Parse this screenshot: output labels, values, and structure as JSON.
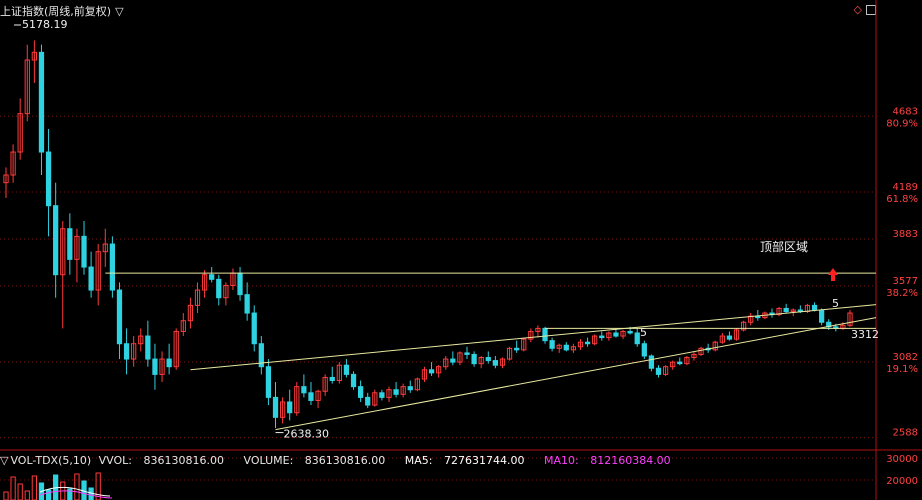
{
  "header": {
    "title": "上证指数(周线,前复权)",
    "menu_icon": "triangle-down-icon"
  },
  "window_controls": {
    "diamond_icon": "diamond-icon",
    "restore_icon": "window-box-icon"
  },
  "colors": {
    "up": "#ff3b3b",
    "down": "#2fd2e0",
    "line": "#e8e8a0",
    "grid": "#7a1010",
    "axis_text": "#ff4040",
    "annot": "#f0f0f0",
    "ma5": "#ffffff",
    "ma10": "#ff40ff"
  },
  "chart_data": {
    "type": "candlestick",
    "price_axis": {
      "ticks": [
        {
          "value": 4683,
          "pct": "80.9%"
        },
        {
          "value": 4189,
          "pct": "61.8%"
        },
        {
          "value": 3883,
          "pct": ""
        },
        {
          "value": 3577,
          "pct": "38.2%"
        },
        {
          "value": 3082,
          "pct": "19.1%"
        },
        {
          "value": 2588,
          "pct": ""
        }
      ],
      "range": [
        2520,
        5350
      ]
    },
    "annotations": {
      "high_label": "5178.19",
      "low_label": "2638.30",
      "last_label": "3312",
      "zone_label": "顶部区域",
      "wave5_label_a": "5",
      "wave5_label_b": "5"
    },
    "volume_axis": {
      "ticks": [
        {
          "value": "30000"
        },
        {
          "value": "20000"
        }
      ]
    },
    "candles": [
      [
        4250,
        4350,
        4150,
        4300
      ],
      [
        4300,
        4500,
        4250,
        4450
      ],
      [
        4450,
        4800,
        4400,
        4700
      ],
      [
        4700,
        5150,
        4650,
        5050
      ],
      [
        5050,
        5178,
        4900,
        5100
      ],
      [
        5100,
        5150,
        4300,
        4450
      ],
      [
        4450,
        4600,
        3900,
        4100
      ],
      [
        4100,
        4250,
        3500,
        3650
      ],
      [
        3650,
        4000,
        3300,
        3950
      ],
      [
        3950,
        4050,
        3650,
        3750
      ],
      [
        3750,
        3950,
        3600,
        3900
      ],
      [
        3900,
        4000,
        3650,
        3700
      ],
      [
        3700,
        3800,
        3500,
        3550
      ],
      [
        3550,
        3850,
        3450,
        3800
      ],
      [
        3800,
        3950,
        3700,
        3850
      ],
      [
        3850,
        3900,
        3500,
        3550
      ],
      [
        3550,
        3600,
        3100,
        3200
      ],
      [
        3200,
        3300,
        3000,
        3100
      ],
      [
        3100,
        3250,
        3050,
        3200
      ],
      [
        3200,
        3300,
        3150,
        3250
      ],
      [
        3250,
        3350,
        3050,
        3100
      ],
      [
        3100,
        3200,
        2900,
        3000
      ],
      [
        3000,
        3150,
        2950,
        3100
      ],
      [
        3100,
        3200,
        3000,
        3050
      ],
      [
        3050,
        3300,
        3030,
        3280
      ],
      [
        3280,
        3400,
        3250,
        3350
      ],
      [
        3350,
        3500,
        3300,
        3450
      ],
      [
        3450,
        3600,
        3400,
        3550
      ],
      [
        3550,
        3680,
        3500,
        3650
      ],
      [
        3650,
        3700,
        3600,
        3620
      ],
      [
        3620,
        3650,
        3450,
        3500
      ],
      [
        3500,
        3600,
        3450,
        3580
      ],
      [
        3580,
        3690,
        3550,
        3660
      ],
      [
        3660,
        3700,
        3480,
        3520
      ],
      [
        3520,
        3600,
        3350,
        3400
      ],
      [
        3400,
        3450,
        3150,
        3200
      ],
      [
        3200,
        3250,
        3000,
        3050
      ],
      [
        3050,
        3100,
        2800,
        2850
      ],
      [
        2850,
        2950,
        2650,
        2720
      ],
      [
        2720,
        2850,
        2680,
        2820
      ],
      [
        2820,
        2900,
        2700,
        2750
      ],
      [
        2750,
        2950,
        2730,
        2920
      ],
      [
        2920,
        3000,
        2850,
        2880
      ],
      [
        2880,
        2950,
        2800,
        2830
      ],
      [
        2830,
        2900,
        2780,
        2890
      ],
      [
        2890,
        3000,
        2860,
        2980
      ],
      [
        2980,
        3050,
        2940,
        2960
      ],
      [
        2960,
        3080,
        2940,
        3060
      ],
      [
        3060,
        3100,
        2980,
        3000
      ],
      [
        3000,
        3020,
        2900,
        2920
      ],
      [
        2920,
        2960,
        2820,
        2850
      ],
      [
        2850,
        2880,
        2780,
        2800
      ],
      [
        2800,
        2900,
        2790,
        2880
      ],
      [
        2880,
        2900,
        2830,
        2850
      ],
      [
        2850,
        2920,
        2820,
        2900
      ],
      [
        2900,
        2950,
        2850,
        2870
      ],
      [
        2870,
        2940,
        2850,
        2920
      ],
      [
        2920,
        2960,
        2880,
        2900
      ],
      [
        2900,
        2980,
        2890,
        2970
      ],
      [
        2970,
        3050,
        2950,
        3030
      ],
      [
        3030,
        3080,
        2990,
        3010
      ],
      [
        3010,
        3060,
        2980,
        3050
      ],
      [
        3050,
        3120,
        3030,
        3100
      ],
      [
        3100,
        3150,
        3060,
        3080
      ],
      [
        3080,
        3150,
        3060,
        3140
      ],
      [
        3140,
        3180,
        3100,
        3130
      ],
      [
        3130,
        3150,
        3050,
        3070
      ],
      [
        3070,
        3120,
        3040,
        3110
      ],
      [
        3110,
        3150,
        3070,
        3090
      ],
      [
        3090,
        3120,
        3040,
        3060
      ],
      [
        3060,
        3110,
        3040,
        3100
      ],
      [
        3100,
        3180,
        3090,
        3170
      ],
      [
        3170,
        3220,
        3140,
        3160
      ],
      [
        3160,
        3240,
        3150,
        3230
      ],
      [
        3230,
        3300,
        3210,
        3280
      ],
      [
        3280,
        3320,
        3240,
        3300
      ],
      [
        3300,
        3310,
        3200,
        3220
      ],
      [
        3220,
        3240,
        3150,
        3170
      ],
      [
        3170,
        3200,
        3140,
        3190
      ],
      [
        3190,
        3210,
        3150,
        3160
      ],
      [
        3160,
        3200,
        3140,
        3180
      ],
      [
        3180,
        3230,
        3160,
        3210
      ],
      [
        3210,
        3240,
        3180,
        3200
      ],
      [
        3200,
        3260,
        3190,
        3250
      ],
      [
        3250,
        3280,
        3220,
        3240
      ],
      [
        3240,
        3280,
        3220,
        3270
      ],
      [
        3270,
        3300,
        3240,
        3250
      ],
      [
        3250,
        3290,
        3230,
        3280
      ],
      [
        3280,
        3310,
        3260,
        3270
      ],
      [
        3270,
        3300,
        3180,
        3200
      ],
      [
        3200,
        3220,
        3100,
        3120
      ],
      [
        3120,
        3130,
        3020,
        3040
      ],
      [
        3040,
        3060,
        2980,
        3000
      ],
      [
        3000,
        3060,
        2990,
        3050
      ],
      [
        3050,
        3090,
        3030,
        3080
      ],
      [
        3080,
        3110,
        3060,
        3070
      ],
      [
        3070,
        3120,
        3060,
        3110
      ],
      [
        3110,
        3150,
        3090,
        3130
      ],
      [
        3130,
        3180,
        3120,
        3170
      ],
      [
        3170,
        3200,
        3140,
        3160
      ],
      [
        3160,
        3220,
        3150,
        3210
      ],
      [
        3210,
        3270,
        3200,
        3250
      ],
      [
        3250,
        3280,
        3220,
        3230
      ],
      [
        3230,
        3300,
        3220,
        3290
      ],
      [
        3290,
        3350,
        3280,
        3340
      ],
      [
        3340,
        3400,
        3320,
        3380
      ],
      [
        3380,
        3420,
        3350,
        3370
      ],
      [
        3370,
        3410,
        3360,
        3400
      ],
      [
        3400,
        3430,
        3370,
        3390
      ],
      [
        3390,
        3440,
        3380,
        3430
      ],
      [
        3430,
        3460,
        3400,
        3410
      ],
      [
        3410,
        3430,
        3380,
        3420
      ],
      [
        3420,
        3450,
        3400,
        3410
      ],
      [
        3410,
        3460,
        3400,
        3450
      ],
      [
        3450,
        3470,
        3410,
        3420
      ],
      [
        3420,
        3430,
        3320,
        3340
      ],
      [
        3340,
        3360,
        3290,
        3310
      ],
      [
        3310,
        3330,
        3280,
        3300
      ],
      [
        3300,
        3340,
        3290,
        3320
      ],
      [
        3320,
        3420,
        3310,
        3400
      ]
    ],
    "volume": {
      "series_name": "VOL-TDX(5,10)",
      "vvol": "836130816.00",
      "volume": "836130816.00",
      "ma5": "727631744.00",
      "ma10": "812160384.00"
    }
  },
  "labels": {
    "vol_name": "VOL-TDX(5,10)",
    "vvol_label": "VVOL:",
    "volume_label": "VOLUME:",
    "ma5_label": "MA5:",
    "ma10_label": "MA10:"
  }
}
